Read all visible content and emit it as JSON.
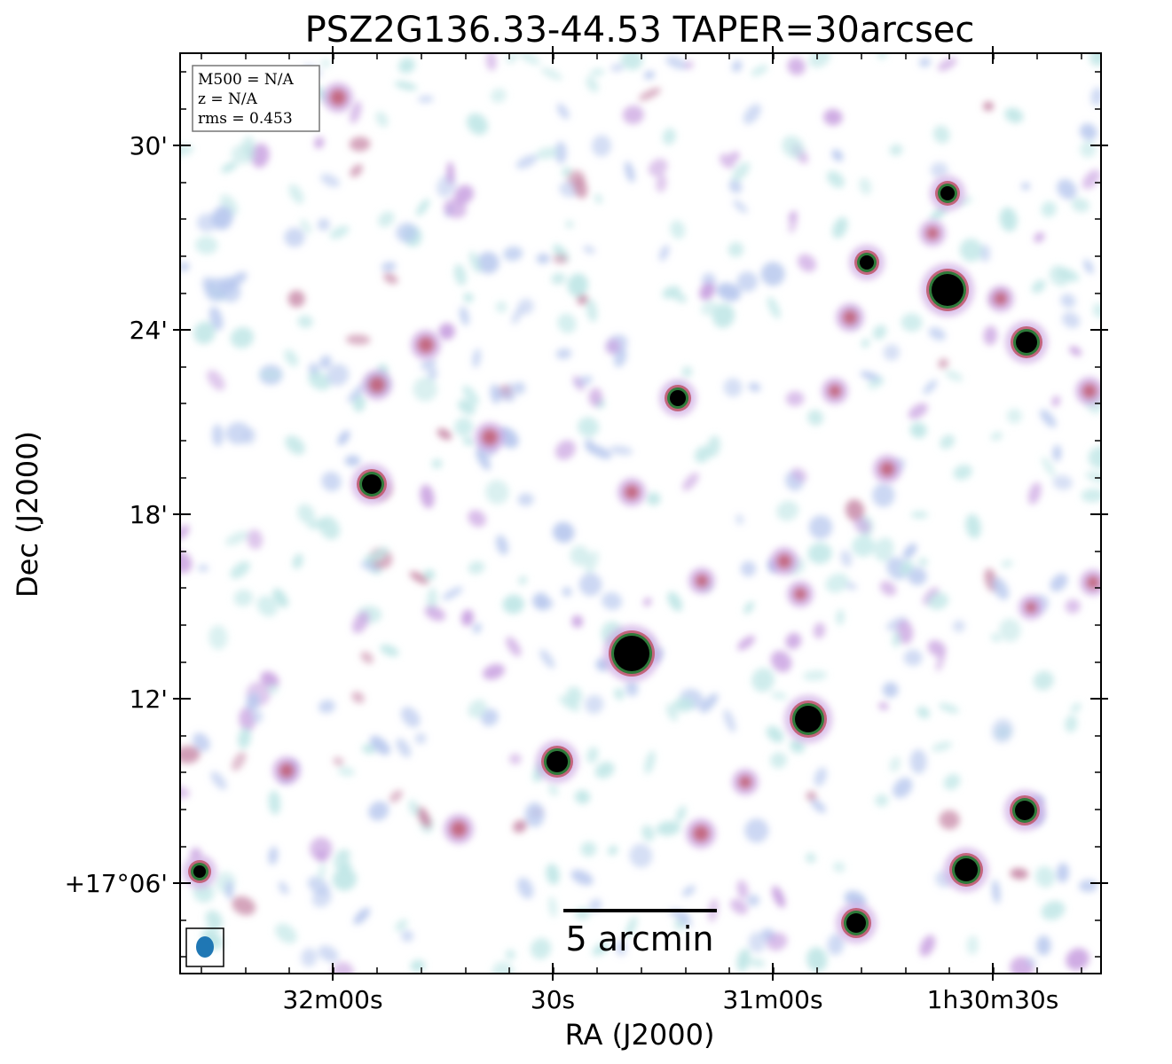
{
  "title": "PSZ2G136.33-44.53 TAPER=30arcsec",
  "info_box": {
    "m500": "M500 = N/A",
    "z": "z = N/A",
    "rms": "rms = 0.453"
  },
  "axes": {
    "xlabel": "RA (J2000)",
    "ylabel": "Dec (J2000)",
    "xticks": [
      "32m00s",
      "30s",
      "31m00s",
      "1h30m30s"
    ],
    "yticks": [
      "30'",
      "24'",
      "18'",
      "12'",
      "+17°06'"
    ]
  },
  "scalebar": {
    "label": "5 arcmin"
  },
  "beam": {
    "color": "#1f77b4"
  },
  "colormap": [
    "#ffffff",
    "#bfe6e6",
    "#b8c8ee",
    "#c8a0e0",
    "#c88aa8",
    "#c05a70",
    "#2e7a3a",
    "#000000"
  ]
}
